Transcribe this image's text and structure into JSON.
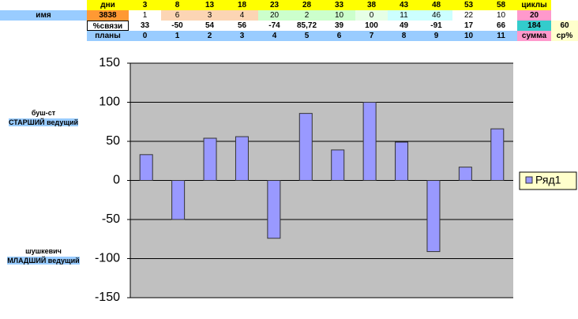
{
  "sheet": {
    "rows": [
      [
        null,
        "дни",
        "3",
        "8",
        "13",
        "18",
        "23",
        "28",
        "33",
        "38",
        "43",
        "48",
        "53",
        "58",
        "циклы",
        null
      ],
      [
        "имя",
        "3838",
        "1",
        "6",
        "3",
        "4",
        "20",
        "2",
        "10",
        "0",
        "11",
        "46",
        "22",
        "10",
        "20",
        null
      ],
      [
        null,
        "%связи",
        "33",
        "-50",
        "54",
        "56",
        "-74",
        "85,72",
        "39",
        "100",
        "49",
        "-91",
        "17",
        "66",
        "184",
        "60"
      ],
      [
        null,
        "планы",
        "0",
        "1",
        "2",
        "3",
        "4",
        "5",
        "6",
        "7",
        "8",
        "9",
        "10",
        "11",
        "сумма",
        "ср%"
      ]
    ],
    "side_labels": [
      {
        "name": "буш-ст",
        "role": "СТАРШИЙ ведущий"
      },
      {
        "name": "шушкевич",
        "role": "МЛАДШИЙ ведущий"
      }
    ]
  },
  "chart_data": {
    "type": "bar",
    "series": [
      {
        "name": "Ряд1",
        "color": "#9999ff",
        "values": [
          33,
          -50,
          54,
          56,
          -74,
          85.72,
          39,
          100,
          49,
          -91,
          17,
          66
        ]
      }
    ],
    "ylim": [
      -150,
      150
    ],
    "yticks": [
      -150,
      -100,
      -50,
      0,
      50,
      100,
      150
    ],
    "grid": true
  }
}
